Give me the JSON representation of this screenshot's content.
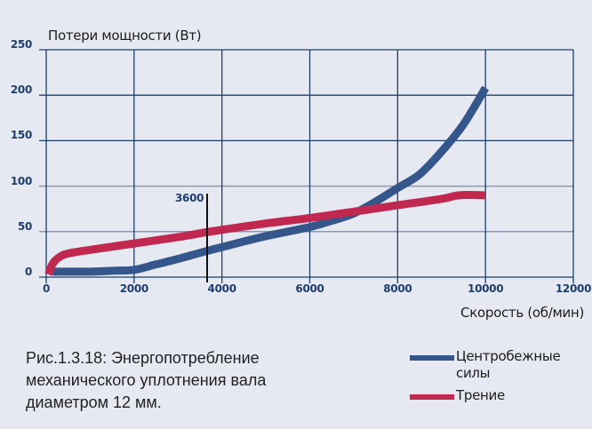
{
  "chart_data": {
    "type": "line",
    "title": "",
    "ylabel": "Потери мощности (Вт)",
    "xlabel": "Скорость (об/мин)",
    "xlim": [
      0,
      12000
    ],
    "ylim": [
      0,
      250
    ],
    "xticks": [
      "0",
      "2000",
      "4000",
      "6000",
      "8000",
      "10000",
      "12000"
    ],
    "yticks": [
      "0",
      "50",
      "100",
      "150",
      "200",
      "250"
    ],
    "grid": true,
    "legend_position": "bottom-right",
    "annotations": [
      {
        "type": "vertical-line",
        "x": 3600,
        "label": "3600"
      }
    ],
    "series": [
      {
        "name": "Центробежные силы",
        "color": "#35568a",
        "x": [
          150,
          500,
          1000,
          1500,
          2000,
          2500,
          3000,
          3600,
          4000,
          5000,
          6000,
          6500,
          7000,
          7500,
          8000,
          8500,
          9000,
          9500,
          10000
        ],
        "y": [
          6,
          6,
          6,
          7,
          8,
          14,
          20,
          28,
          33,
          45,
          55,
          62,
          70,
          83,
          98,
          113,
          138,
          168,
          208
        ]
      },
      {
        "name": "Трение",
        "color": "#c0284f",
        "x": [
          50,
          150,
          300,
          500,
          1000,
          2000,
          3000,
          3600,
          4000,
          5000,
          6000,
          7000,
          8000,
          9000,
          9400,
          10000
        ],
        "y": [
          3,
          15,
          22,
          26,
          30,
          37,
          44,
          49,
          52,
          59,
          65,
          72,
          79,
          86,
          90,
          90
        ]
      }
    ]
  },
  "axis": {
    "y_title": "Потери мощности (Вт)",
    "x_title": "Скорость (об/мин)",
    "marker_label": "3600"
  },
  "caption": "Рис.1.3.18: Энергопотребление механического уплотнения вала диаметром 12 мм.",
  "legend": {
    "items": [
      {
        "label": "Центробежные силы",
        "color": "#35568a"
      },
      {
        "label": "Трение",
        "color": "#c0284f"
      }
    ]
  },
  "colors": {
    "background": "#e6e9f1",
    "grid": "#1e3f6e",
    "grid_light": "#8d97ad",
    "tick_text": "#1e3f6e"
  }
}
